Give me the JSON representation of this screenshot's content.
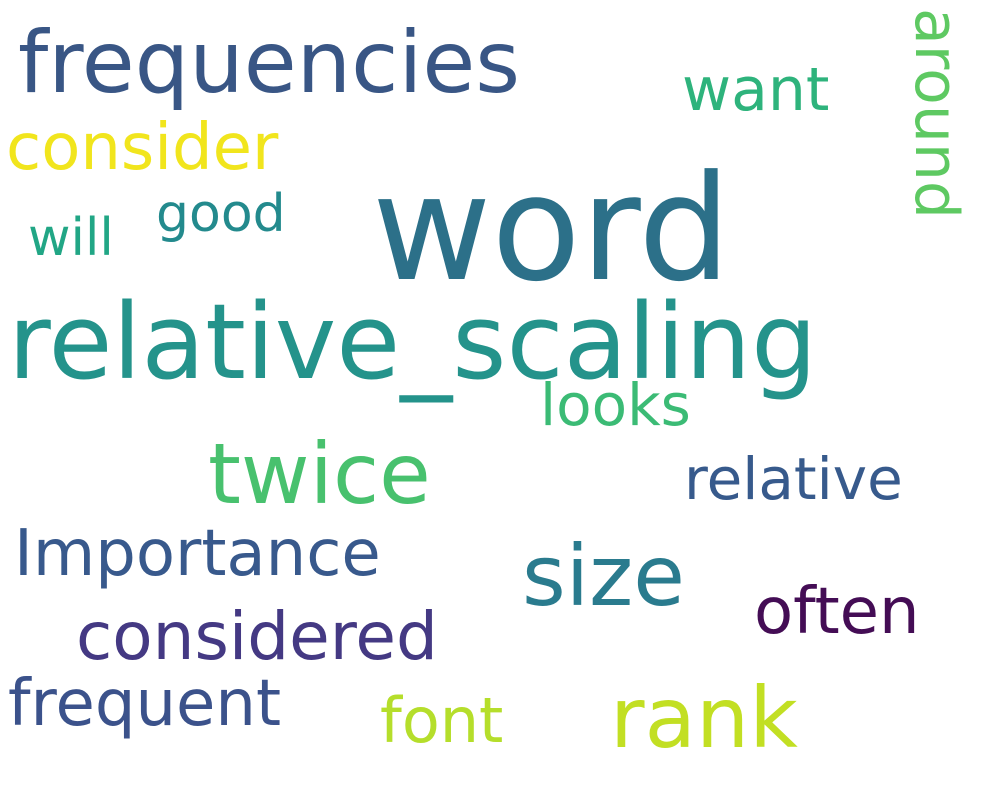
{
  "words": [
    {
      "text": "word",
      "color": "#2c7089"
    },
    {
      "text": "relative_scaling",
      "color": "#24938b"
    },
    {
      "text": "frequencies",
      "color": "#395685"
    },
    {
      "text": "twice",
      "color": "#48c16e"
    },
    {
      "text": "rank",
      "color": "#c2df23"
    },
    {
      "text": "size",
      "color": "#2a7b8e"
    },
    {
      "text": "Importance",
      "color": "#38598c"
    },
    {
      "text": "considered",
      "color": "#443983"
    },
    {
      "text": "often",
      "color": "#440d55"
    },
    {
      "text": "frequent",
      "color": "#3b528b"
    },
    {
      "text": "relative",
      "color": "#375a8c"
    },
    {
      "text": "consider",
      "color": "#f1e51d"
    },
    {
      "text": "font",
      "color": "#b5de2b"
    },
    {
      "text": "want",
      "color": "#2eb37c"
    },
    {
      "text": "around",
      "color": "#5ec962"
    },
    {
      "text": "looks",
      "color": "#3bbb75"
    },
    {
      "text": "good",
      "color": "#238a8d"
    },
    {
      "text": "will",
      "color": "#21a685"
    }
  ]
}
